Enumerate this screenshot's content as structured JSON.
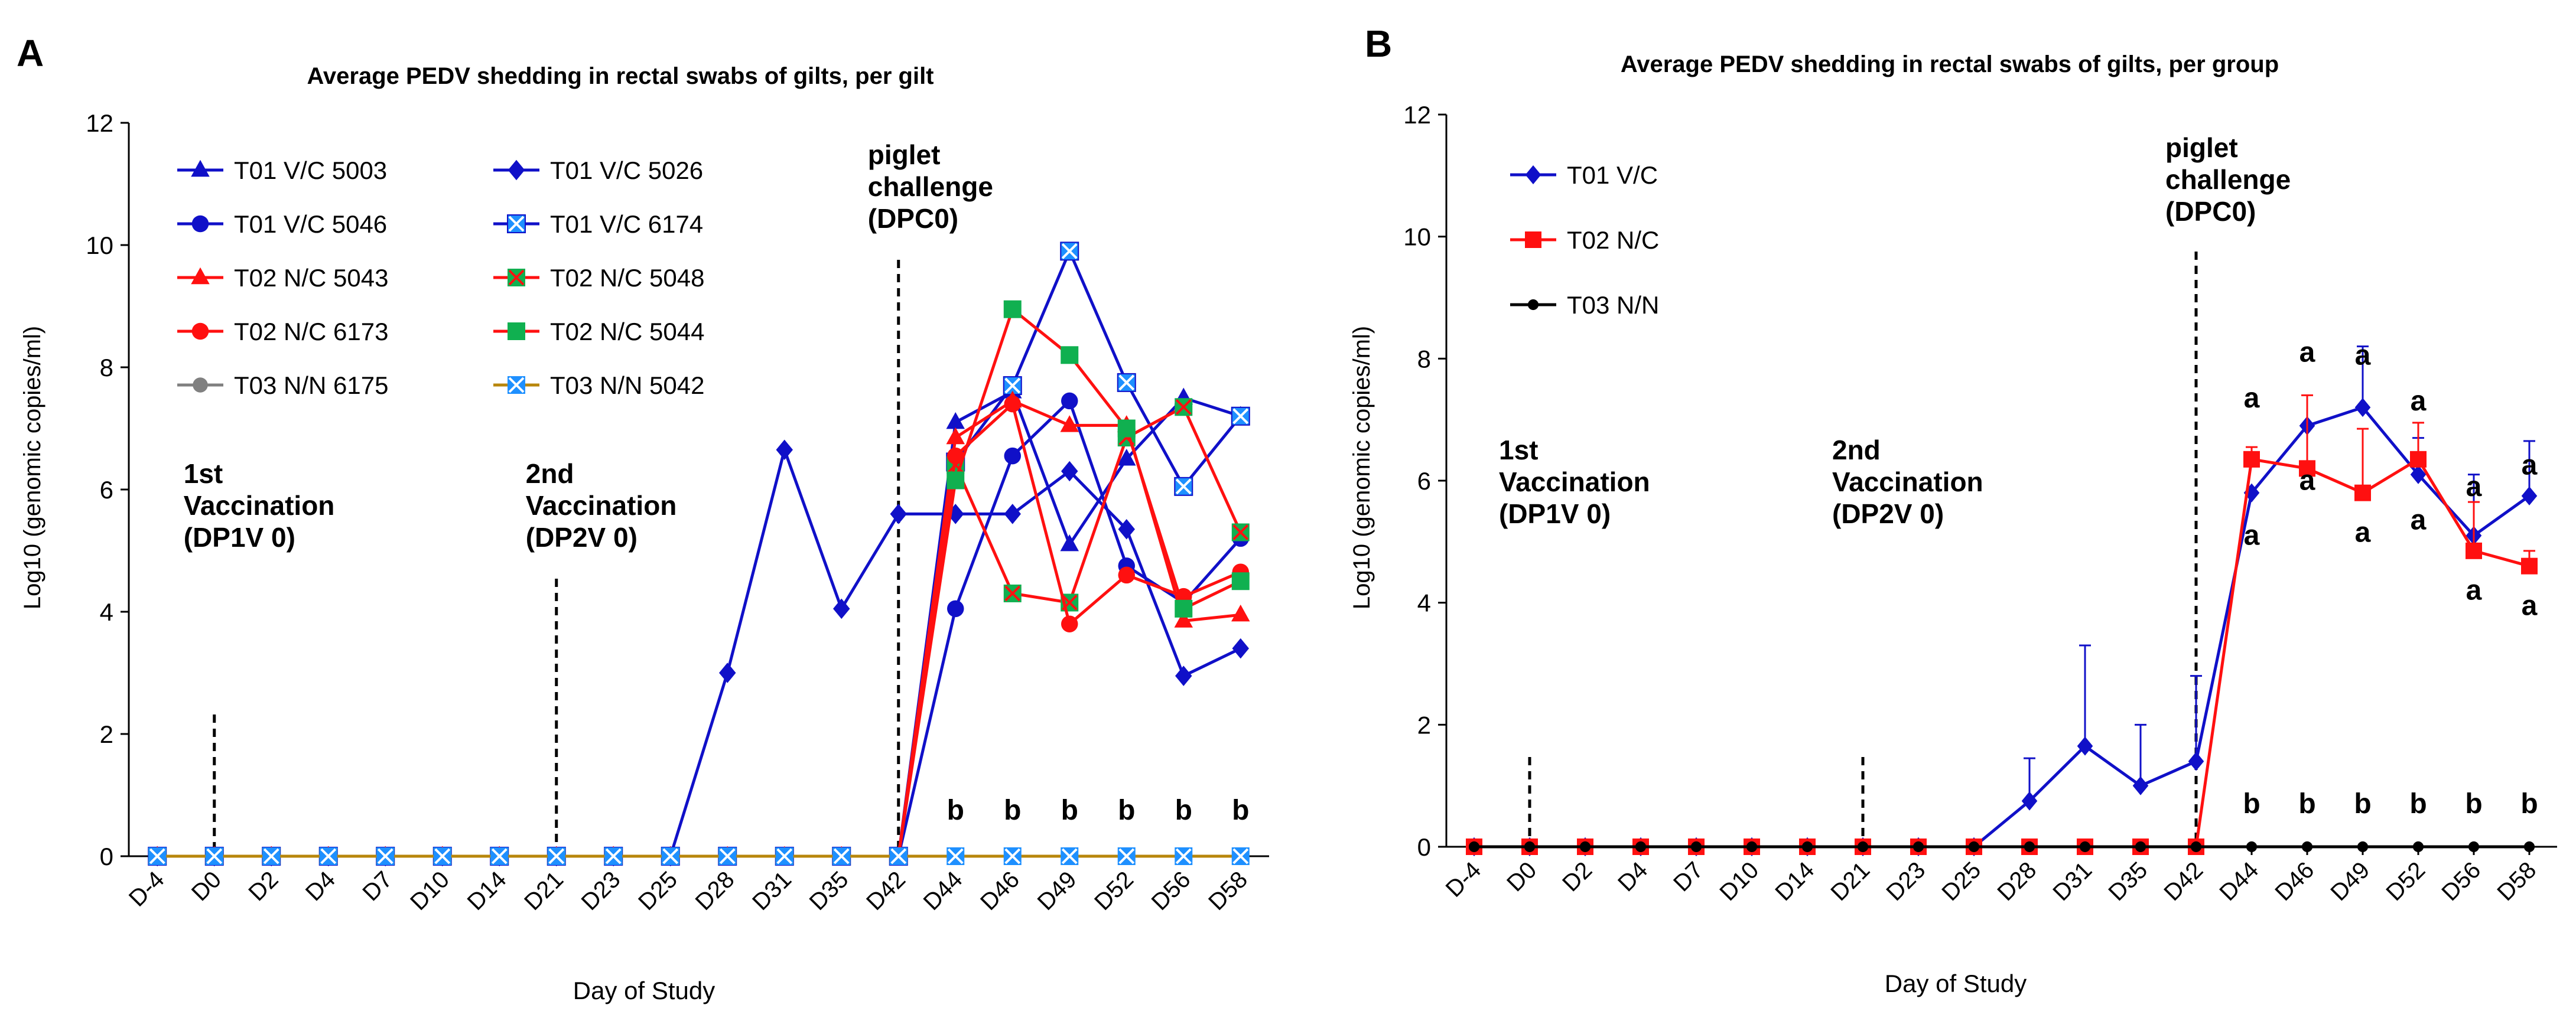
{
  "colors": {
    "blue": "#1010C8",
    "red": "#FF1010",
    "green": "#10B050",
    "black": "#000000",
    "grey": "#808080",
    "brown": "#B8860B",
    "cyan": "#1E90FF",
    "axis": "#000000",
    "dash": "#000000"
  },
  "chart_data": [
    {
      "panel": "A",
      "type": "line",
      "title": "Average PEDV shedding in rectal swabs of gilts, per gilt",
      "xlabel": "Day of Study",
      "ylabel": "Log10 (genomic copies/ml)",
      "ylim": [
        0,
        12
      ],
      "yticks": [
        "0",
        "2",
        "4",
        "6",
        "8",
        "10",
        "12"
      ],
      "categories": [
        "D-4",
        "D0",
        "D2",
        "D4",
        "D7",
        "D10",
        "D14",
        "D21",
        "D23",
        "D25",
        "D28",
        "D31",
        "D35",
        "D42",
        "D44",
        "D46",
        "D49",
        "D52",
        "D56",
        "D58"
      ],
      "legend_position": "top-left",
      "series": [
        {
          "name": "T01 V/C 5003",
          "color": "blue",
          "marker": "triangle",
          "values": [
            0,
            0,
            0,
            0,
            0,
            0,
            0,
            0,
            0,
            0,
            0,
            0,
            0,
            0,
            7.1,
            7.6,
            5.1,
            6.5,
            7.5,
            7.2
          ]
        },
        {
          "name": "T01 V/C 5026",
          "color": "blue",
          "marker": "diamond",
          "values": [
            0,
            0,
            0,
            0,
            0,
            0,
            0,
            0,
            0,
            0,
            3.0,
            6.65,
            4.05,
            5.6,
            5.6,
            5.6,
            6.3,
            5.35,
            2.95,
            3.4
          ]
        },
        {
          "name": "T01 V/C 5046",
          "color": "blue",
          "marker": "circle",
          "values": [
            0,
            0,
            0,
            0,
            0,
            0,
            0,
            0,
            0,
            0,
            0,
            0,
            0,
            0,
            4.05,
            6.55,
            7.45,
            4.75,
            4.15,
            5.2
          ]
        },
        {
          "name": "T01 V/C 6174",
          "color": "blue",
          "marker": "xsquare",
          "values": [
            0,
            0,
            0,
            0,
            0,
            0,
            0,
            0,
            0,
            0,
            0,
            0,
            0,
            0,
            6.45,
            7.7,
            9.9,
            7.75,
            6.05,
            7.2
          ]
        },
        {
          "name": "T02 N/C 5043",
          "color": "red",
          "marker": "triangle",
          "values": [
            0,
            0,
            0,
            0,
            0,
            0,
            0,
            0,
            0,
            0,
            0,
            0,
            0,
            0,
            6.85,
            7.45,
            7.05,
            7.05,
            3.85,
            3.95
          ]
        },
        {
          "name": "T02 N/C 5048",
          "color": "red",
          "marker": "xsquare-green",
          "values": [
            0,
            0,
            0,
            0,
            0,
            0,
            0,
            0,
            0,
            0,
            0,
            0,
            0,
            0,
            6.4,
            4.3,
            4.15,
            6.85,
            7.35,
            5.3
          ]
        },
        {
          "name": "T02 N/C 6173",
          "color": "red",
          "marker": "circle",
          "values": [
            0,
            0,
            0,
            0,
            0,
            0,
            0,
            0,
            0,
            0,
            0,
            0,
            0,
            0,
            6.55,
            7.4,
            3.8,
            4.6,
            4.25,
            4.65
          ]
        },
        {
          "name": "T02 N/C 5044",
          "color": "red",
          "marker": "square-green",
          "values": [
            0,
            0,
            0,
            0,
            0,
            0,
            0,
            0,
            0,
            0,
            0,
            0,
            0,
            0,
            6.15,
            8.95,
            8.2,
            7.0,
            4.05,
            4.5
          ]
        },
        {
          "name": "T03 N/N 6175",
          "color": "grey",
          "marker": "circle-grey",
          "values": [
            0,
            0,
            0,
            0,
            0,
            0,
            0,
            0,
            0,
            0,
            0,
            0,
            0,
            0,
            0,
            0,
            0,
            0,
            0,
            0
          ]
        },
        {
          "name": "T03 N/N 5042",
          "color": "brown",
          "marker": "xsquare-cyan",
          "values": [
            0,
            0,
            0,
            0,
            0,
            0,
            0,
            0,
            0,
            0,
            0,
            0,
            0,
            0,
            0,
            0,
            0,
            0,
            0,
            0
          ]
        }
      ],
      "annotations": [
        {
          "at": "D0",
          "lines": [
            "1st",
            "Vaccination",
            "(DP1V 0)"
          ]
        },
        {
          "at": "D21",
          "lines": [
            "2nd",
            "Vaccination",
            "(DP2V 0)"
          ]
        },
        {
          "at": "D42",
          "lines": [
            "piglet",
            "challenge",
            "(DPC0)"
          ]
        }
      ],
      "letters": [
        {
          "cat": "D44",
          "text": "b",
          "y": 0.6
        },
        {
          "cat": "D46",
          "text": "b",
          "y": 0.6
        },
        {
          "cat": "D49",
          "text": "b",
          "y": 0.6
        },
        {
          "cat": "D52",
          "text": "b",
          "y": 0.6
        },
        {
          "cat": "D56",
          "text": "b",
          "y": 0.6
        },
        {
          "cat": "D58",
          "text": "b",
          "y": 0.6
        }
      ]
    },
    {
      "panel": "B",
      "type": "line",
      "title": "Average PEDV shedding in rectal swabs of gilts, per group",
      "xlabel": "Day of Study",
      "ylabel": "Log10 (genomic copies/ml)",
      "ylim": [
        0,
        12
      ],
      "yticks": [
        "0",
        "2",
        "4",
        "6",
        "8",
        "10",
        "12"
      ],
      "categories": [
        "D-4",
        "D0",
        "D2",
        "D4",
        "D7",
        "D10",
        "D14",
        "D21",
        "D23",
        "D25",
        "D28",
        "D31",
        "D35",
        "D42",
        "D44",
        "D46",
        "D49",
        "D52",
        "D56",
        "D58"
      ],
      "legend_position": "top-left",
      "series": [
        {
          "name": "T01 V/C",
          "color": "blue",
          "marker": "diamond",
          "values": [
            0,
            0,
            0,
            0,
            0,
            0,
            0,
            0,
            0,
            0,
            0.75,
            1.65,
            1.0,
            1.4,
            5.8,
            6.9,
            7.2,
            6.1,
            5.1,
            5.75
          ],
          "errors": [
            0,
            0,
            0,
            0,
            0,
            0,
            0,
            0,
            0,
            0,
            0.7,
            1.65,
            1.0,
            1.4,
            0,
            0,
            1.0,
            0.6,
            1.0,
            0.9
          ]
        },
        {
          "name": "T02 N/C",
          "color": "red",
          "marker": "square",
          "values": [
            0,
            0,
            0,
            0,
            0,
            0,
            0,
            0,
            0,
            0,
            0,
            0,
            0,
            0,
            6.35,
            6.2,
            5.8,
            6.35,
            4.85,
            4.6
          ],
          "errors": [
            0,
            0,
            0,
            0,
            0,
            0,
            0,
            0,
            0,
            0,
            0,
            0,
            0,
            0,
            0.2,
            1.2,
            1.05,
            0.6,
            0.8,
            0.25
          ]
        },
        {
          "name": "T03 N/N",
          "color": "black",
          "marker": "circle-small",
          "values": [
            0,
            0,
            0,
            0,
            0,
            0,
            0,
            0,
            0,
            0,
            0,
            0,
            0,
            0,
            0,
            0,
            0,
            0,
            0,
            0
          ]
        }
      ],
      "annotations": [
        {
          "at": "D0",
          "lines": [
            "1st",
            "Vaccination",
            "(DP1V 0)"
          ]
        },
        {
          "at": "D21",
          "lines": [
            "2nd",
            "Vaccination",
            "(DP2V 0)"
          ]
        },
        {
          "at": "D42",
          "lines": [
            "piglet",
            "challenge",
            "(DPC0)"
          ]
        }
      ],
      "letters": [
        {
          "cat": "D44",
          "text": "a",
          "y": 7.2
        },
        {
          "cat": "D44",
          "text": "a",
          "y": 4.95
        },
        {
          "cat": "D46",
          "text": "a",
          "y": 7.95
        },
        {
          "cat": "D46",
          "text": "a",
          "y": 5.85
        },
        {
          "cat": "D49",
          "text": "a",
          "y": 7.9
        },
        {
          "cat": "D49",
          "text": "a",
          "y": 5.0
        },
        {
          "cat": "D52",
          "text": "a",
          "y": 7.15
        },
        {
          "cat": "D52",
          "text": "a",
          "y": 5.2
        },
        {
          "cat": "D56",
          "text": "a",
          "y": 5.75
        },
        {
          "cat": "D56",
          "text": "a",
          "y": 4.05
        },
        {
          "cat": "D58",
          "text": "a",
          "y": 6.1
        },
        {
          "cat": "D58",
          "text": "a",
          "y": 3.8
        },
        {
          "cat": "D44",
          "text": "b",
          "y": 0.55
        },
        {
          "cat": "D46",
          "text": "b",
          "y": 0.55
        },
        {
          "cat": "D49",
          "text": "b",
          "y": 0.55
        },
        {
          "cat": "D52",
          "text": "b",
          "y": 0.55
        },
        {
          "cat": "D56",
          "text": "b",
          "y": 0.55
        },
        {
          "cat": "D58",
          "text": "b",
          "y": 0.55
        }
      ]
    }
  ]
}
